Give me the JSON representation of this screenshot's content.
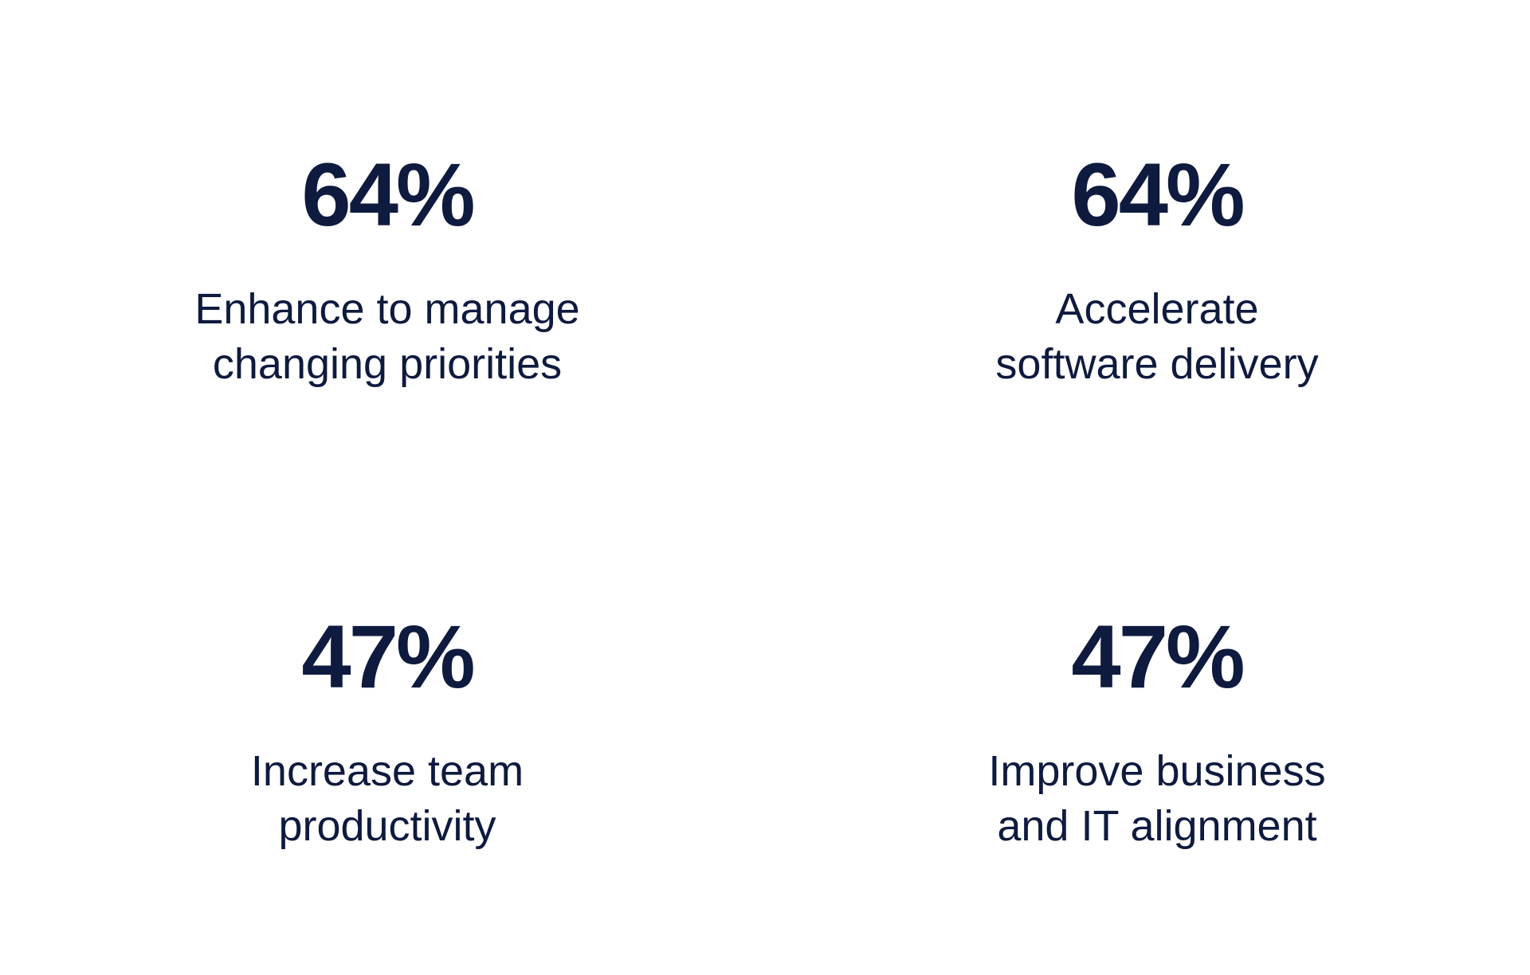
{
  "stats": [
    {
      "value": "64%",
      "label": [
        "Enhance to manage",
        "changing priorities"
      ]
    },
    {
      "value": "64%",
      "label": [
        "Accelerate",
        "software delivery"
      ]
    },
    {
      "value": "47%",
      "label": [
        "Increase team",
        "productivity"
      ]
    },
    {
      "value": "47%",
      "label": [
        "Improve business",
        "and IT alignment"
      ]
    }
  ]
}
